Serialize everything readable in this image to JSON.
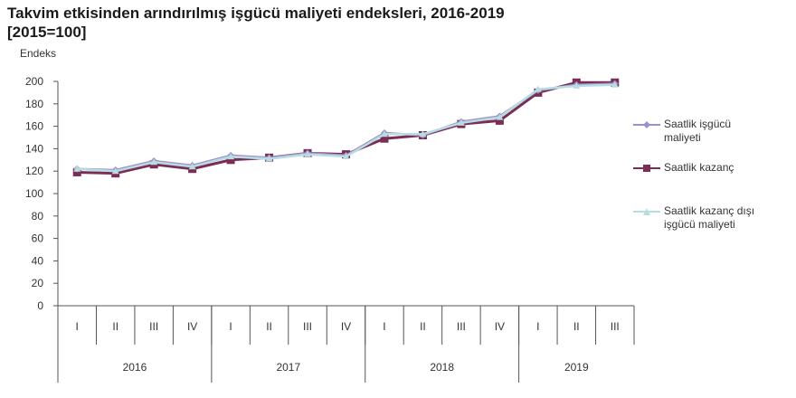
{
  "title_line1": "Takvim etkisinden arındırılmış işgücü maliyeti endeksleri, 2016-2019",
  "title_line2": "[2015=100]",
  "chart_data": {
    "type": "line",
    "title": "Takvim etkisinden arındırılmış işgücü maliyeti endeksleri, 2016-2019 [2015=100]",
    "xlabel": "",
    "ylabel": "Endeks",
    "ylim": [
      0,
      200
    ],
    "yticks": [
      0,
      20,
      40,
      60,
      80,
      100,
      120,
      140,
      160,
      180,
      200
    ],
    "grid": false,
    "legend_position": "right",
    "categories": [
      "I",
      "II",
      "III",
      "IV",
      "I",
      "II",
      "III",
      "IV",
      "I",
      "II",
      "III",
      "IV",
      "I",
      "II",
      "III"
    ],
    "category_groups": [
      {
        "label": "2016",
        "span": 4
      },
      {
        "label": "2017",
        "span": 4
      },
      {
        "label": "2018",
        "span": 4
      },
      {
        "label": "2019",
        "span": 3
      }
    ],
    "series": [
      {
        "name": "Saatlik işgücü maliyeti",
        "color": "#9b8fd0",
        "marker": "diamond",
        "values": [
          122,
          121,
          129,
          125,
          134,
          132,
          136,
          134,
          154,
          152,
          164,
          169,
          192,
          197,
          198
        ]
      },
      {
        "name": "Saatlik kazanç",
        "color": "#7b2d55",
        "marker": "square",
        "values": [
          119,
          118,
          126,
          122,
          130,
          132,
          136,
          135,
          149,
          152,
          162,
          165,
          190,
          199,
          199
        ]
      },
      {
        "name": "Saatlik kazanç dışı işgücü maliyeti",
        "color": "#b8dde0",
        "marker": "triangle",
        "values": [
          122,
          120,
          128,
          124,
          133,
          131,
          135,
          133,
          153,
          153,
          163,
          168,
          193,
          196,
          197
        ]
      }
    ]
  },
  "legend": {
    "items": [
      {
        "line1": "Saatlik işgücü",
        "line2": "maliyeti"
      },
      {
        "line1": "Saatlik kazanç",
        "line2": ""
      },
      {
        "line1": "Saatlik kazanç dışı",
        "line2": "işgücü maliyeti"
      }
    ]
  }
}
